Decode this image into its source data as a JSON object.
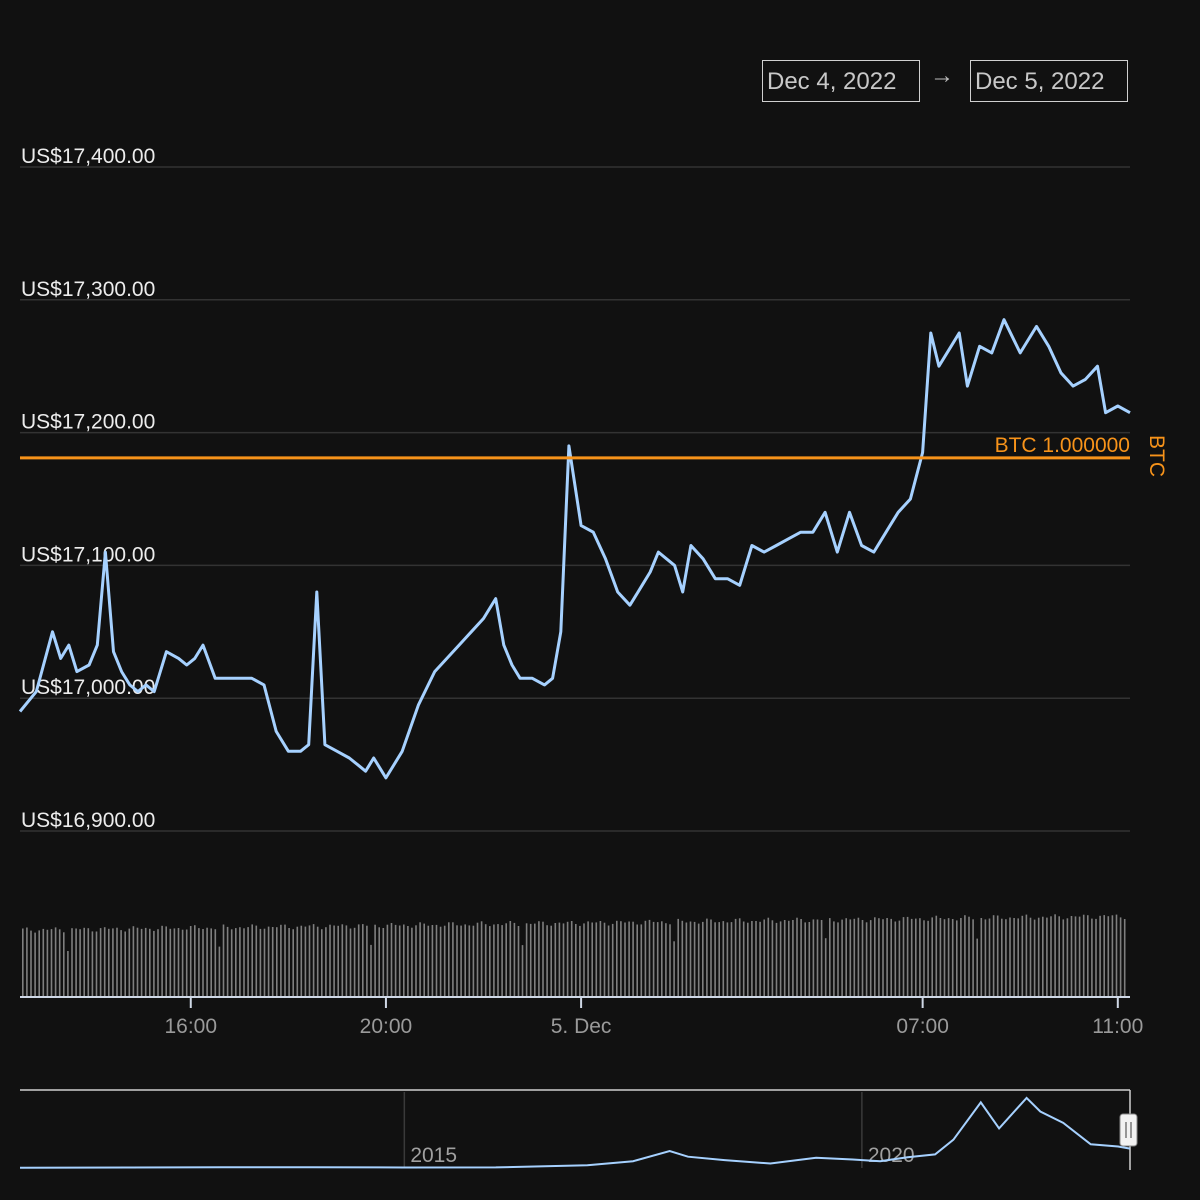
{
  "range_selector": {
    "from": "Dec 4, 2022",
    "arrow": "→",
    "to": "Dec 5, 2022"
  },
  "colors": {
    "background": "#111111",
    "price_line": "#a6d1ff",
    "reference_line": "#f7931a",
    "grid": "#333333",
    "volume": "#7f7f7f"
  },
  "chart_data": {
    "type": "line",
    "title": "",
    "y_tick_labels": [
      "US$17,400.00",
      "US$17,300.00",
      "US$17,200.00",
      "US$17,100.00",
      "US$17,000.00",
      "US$16,900.00"
    ],
    "y_ticks": [
      17400,
      17300,
      17200,
      17100,
      17000,
      16900
    ],
    "ylim": [
      16900,
      17400
    ],
    "xlim": [
      "2022-12-04 12:30",
      "2022-12-05 11:15"
    ],
    "x_tick_labels": [
      "16:00",
      "20:00",
      "5. Dec",
      "07:00",
      "11:00"
    ],
    "x_ticks": [
      "2022-12-04 16:00",
      "2022-12-04 20:00",
      "2022-12-05 00:00",
      "2022-12-05 07:00",
      "2022-12-05 11:00"
    ],
    "grid": true,
    "reference_line": {
      "value": 17181,
      "label": "BTC 1.000000",
      "axis_label": "BTC"
    },
    "series": [
      {
        "x": [
          "2022-12-04 12:30",
          "2022-12-04 12:50",
          "2022-12-04 13:10",
          "2022-12-04 13:20",
          "2022-12-04 13:30",
          "2022-12-04 13:40",
          "2022-12-04 13:55",
          "2022-12-04 14:05",
          "2022-12-04 14:15",
          "2022-12-04 14:25",
          "2022-12-04 14:35",
          "2022-12-04 14:45",
          "2022-12-04 14:55",
          "2022-12-04 15:05",
          "2022-12-04 15:15",
          "2022-12-04 15:30",
          "2022-12-04 15:45",
          "2022-12-04 15:55",
          "2022-12-04 16:05",
          "2022-12-04 16:15",
          "2022-12-04 16:30",
          "2022-12-04 16:45",
          "2022-12-04 17:00",
          "2022-12-04 17:15",
          "2022-12-04 17:30",
          "2022-12-04 17:45",
          "2022-12-04 18:00",
          "2022-12-04 18:15",
          "2022-12-04 18:25",
          "2022-12-04 18:35",
          "2022-12-04 18:45",
          "2022-12-04 19:00",
          "2022-12-04 19:15",
          "2022-12-04 19:25",
          "2022-12-04 19:35",
          "2022-12-04 19:45",
          "2022-12-04 20:00",
          "2022-12-04 20:20",
          "2022-12-04 20:40",
          "2022-12-04 21:00",
          "2022-12-04 21:15",
          "2022-12-04 21:30",
          "2022-12-04 21:45",
          "2022-12-04 22:00",
          "2022-12-04 22:15",
          "2022-12-04 22:25",
          "2022-12-04 22:35",
          "2022-12-04 22:45",
          "2022-12-04 23:00",
          "2022-12-04 23:15",
          "2022-12-04 23:25",
          "2022-12-04 23:35",
          "2022-12-04 23:45",
          "2022-12-05 00:00",
          "2022-12-05 00:15",
          "2022-12-05 00:30",
          "2022-12-05 00:45",
          "2022-12-05 01:00",
          "2022-12-05 01:05",
          "2022-12-05 01:15",
          "2022-12-05 01:25",
          "2022-12-05 01:35",
          "2022-12-05 01:45",
          "2022-12-05 01:55",
          "2022-12-05 02:05",
          "2022-12-05 02:15",
          "2022-12-05 02:30",
          "2022-12-05 02:45",
          "2022-12-05 03:00",
          "2022-12-05 03:15",
          "2022-12-05 03:30",
          "2022-12-05 03:45",
          "2022-12-05 04:00",
          "2022-12-05 04:15",
          "2022-12-05 04:30",
          "2022-12-05 04:45",
          "2022-12-05 05:00",
          "2022-12-05 05:15",
          "2022-12-05 05:30",
          "2022-12-05 05:45",
          "2022-12-05 06:00",
          "2022-12-05 06:15",
          "2022-12-05 06:30",
          "2022-12-05 06:45",
          "2022-12-05 07:00",
          "2022-12-05 07:10",
          "2022-12-05 07:20",
          "2022-12-05 07:35",
          "2022-12-05 07:45",
          "2022-12-05 07:55",
          "2022-12-05 08:10",
          "2022-12-05 08:25",
          "2022-12-05 08:40",
          "2022-12-05 09:00",
          "2022-12-05 09:20",
          "2022-12-05 09:35",
          "2022-12-05 09:50",
          "2022-12-05 10:05",
          "2022-12-05 10:20",
          "2022-12-05 10:35",
          "2022-12-05 10:45",
          "2022-12-05 11:00",
          "2022-12-05 11:15"
        ],
        "values": [
          16990,
          17005,
          17050,
          17030,
          17040,
          17020,
          17025,
          17040,
          17110,
          17035,
          17020,
          17010,
          17005,
          17010,
          17005,
          17035,
          17030,
          17025,
          17030,
          17040,
          17015,
          17015,
          17015,
          17015,
          17010,
          16975,
          16960,
          16960,
          16965,
          17080,
          16965,
          16960,
          16955,
          16950,
          16945,
          16955,
          16940,
          16960,
          16995,
          17020,
          17030,
          17040,
          17050,
          17060,
          17075,
          17040,
          17025,
          17015,
          17015,
          17010,
          17015,
          17050,
          17190,
          17130,
          17125,
          17105,
          17080,
          17070,
          17075,
          17085,
          17095,
          17110,
          17105,
          17100,
          17080,
          17115,
          17105,
          17090,
          17090,
          17085,
          17115,
          17110,
          17115,
          17120,
          17125,
          17125,
          17140,
          17110,
          17140,
          17115,
          17110,
          17125,
          17140,
          17150,
          17185,
          17275,
          17250,
          17265,
          17275,
          17235,
          17265,
          17260,
          17285,
          17260,
          17280,
          17265,
          17245,
          17235,
          17240,
          17250,
          17215,
          17220,
          17215
        ]
      }
    ],
    "volume": {
      "label": "volume bars",
      "relative_level": "roughly constant, slightly increasing toward the end"
    },
    "navigator": {
      "x_tick_labels": [
        "2015",
        "2020"
      ],
      "series": {
        "x": [
          2010.8,
          2012,
          2013,
          2014,
          2015,
          2016,
          2017,
          2017.5,
          2017.9,
          2018.1,
          2018.5,
          2019,
          2019.5,
          2019.9,
          2020.2,
          2020.5,
          2020.8,
          2021,
          2021.3,
          2021.5,
          2021.8,
          2021.95,
          2022.2,
          2022.5,
          2022.8,
          2022.93
        ],
        "values": [
          300,
          400,
          600,
          700,
          400,
          500,
          2500,
          6000,
          15000,
          10000,
          7000,
          4000,
          9000,
          7500,
          6000,
          9500,
          12000,
          25000,
          58000,
          35000,
          62000,
          50000,
          40000,
          21000,
          19000,
          17200
        ]
      }
    }
  }
}
